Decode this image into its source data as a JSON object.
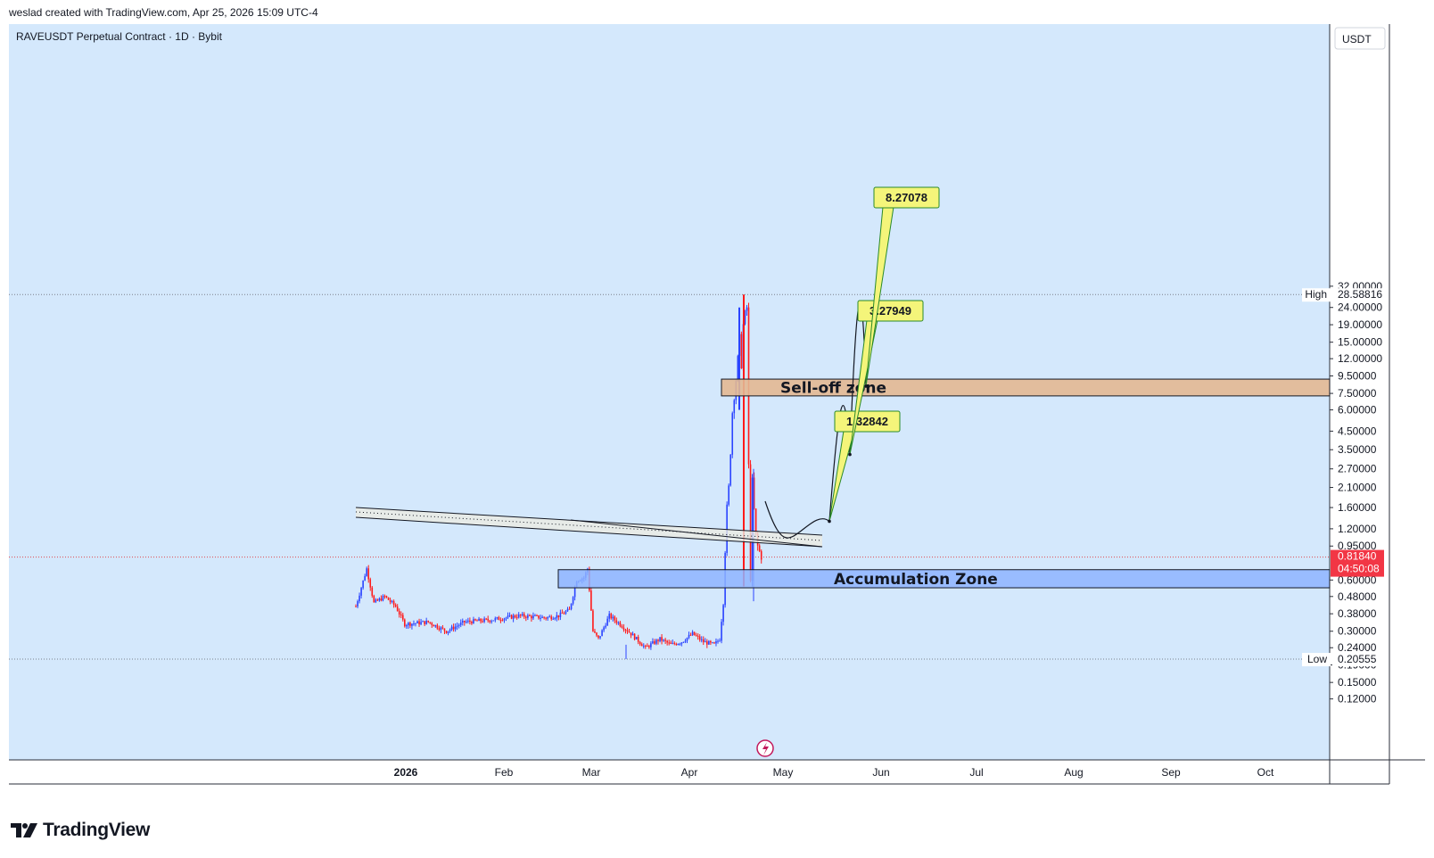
{
  "header": {
    "attribution": "weslad created with TradingView.com, Apr 25, 2026 15:09 UTC-4"
  },
  "symbol_title": "RAVEUSDT Perpetual Contract · 1D · Bybit",
  "currency_button": "USDT",
  "brand": "TradingView",
  "colors": {
    "chart_bg": "#d4e8fc",
    "up": "#2b44ff",
    "down": "#ff1a1a",
    "sell_zone": "#e3b892",
    "accum_zone": "#8eb4ff",
    "label_bg": "#f4f57a",
    "label_border": "#2a8a2a",
    "price_tag": "#f23645"
  },
  "chart_data": {
    "type": "candlestick",
    "title": "RAVEUSDT Perpetual Contract · 1D · Bybit",
    "y_scale": "log",
    "y_ticks": [
      "32.00000",
      "24.00000",
      "19.00000",
      "15.00000",
      "12.00000",
      "9.50000",
      "7.50000",
      "6.00000",
      "4.50000",
      "3.50000",
      "2.70000",
      "2.10000",
      "1.60000",
      "1.20000",
      "0.95000",
      "0.60000",
      "0.48000",
      "0.38000",
      "0.30000",
      "0.24000",
      "0.19000",
      "0.15000",
      "0.12000"
    ],
    "y_tick_values": [
      32,
      24,
      19,
      15,
      12,
      9.5,
      7.5,
      6,
      4.5,
      3.5,
      2.7,
      2.1,
      1.6,
      1.2,
      0.95,
      0.6,
      0.48,
      0.38,
      0.3,
      0.24,
      0.19,
      0.15,
      0.12
    ],
    "x_ticks": [
      "2026",
      "Feb",
      "Mar",
      "Apr",
      "May",
      "Jun",
      "Jul",
      "Aug",
      "Sep",
      "Oct"
    ],
    "high": {
      "label": "High",
      "value": "28.58816"
    },
    "low": {
      "label": "Low",
      "value": "0.20555"
    },
    "last_price": {
      "value": "0.81840",
      "countdown": "04:50:08"
    },
    "zones": [
      {
        "name": "Sell-off zone",
        "low": 7.25,
        "high": 9.1
      },
      {
        "name": "Accumulation Zone",
        "low": 0.54,
        "high": 0.69
      }
    ],
    "targets": [
      "1.32842",
      "3.27949",
      "8.27078"
    ],
    "target_values": [
      1.32842,
      3.27949,
      8.27078
    ]
  }
}
